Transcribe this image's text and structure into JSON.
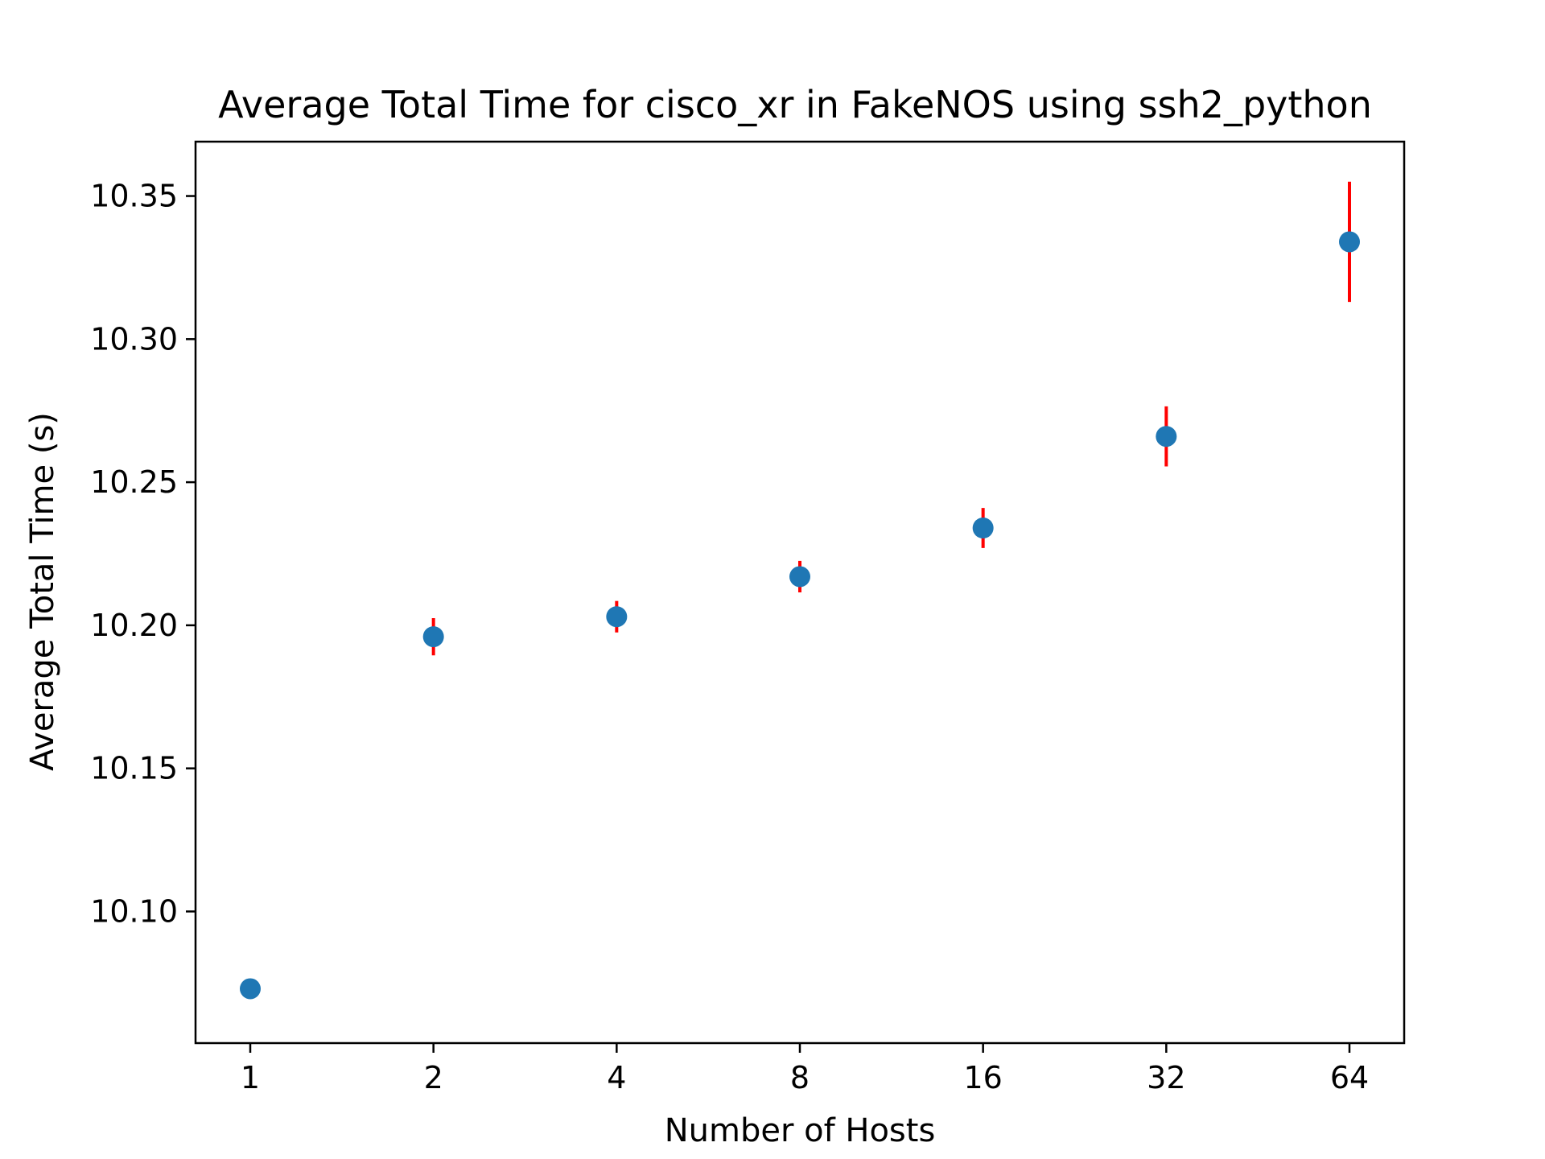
{
  "chart_data": {
    "type": "scatter",
    "title": "Average Total Time for cisco_xr in FakeNOS using ssh2_python",
    "xlabel": "Number of Hosts",
    "ylabel": "Average Total Time (s)",
    "x_categories": [
      "1",
      "2",
      "4",
      "8",
      "16",
      "32",
      "64"
    ],
    "x_scale": "log2",
    "ylim": [
      10.054,
      10.369
    ],
    "yticks": [
      "10.10",
      "10.15",
      "10.20",
      "10.25",
      "10.30",
      "10.35"
    ],
    "ytick_values": [
      10.1,
      10.15,
      10.2,
      10.25,
      10.3,
      10.35
    ],
    "grid": false,
    "legend": "none",
    "series": [
      {
        "x": [
          1,
          2,
          4,
          8,
          16,
          32,
          64
        ],
        "y": [
          10.073,
          10.196,
          10.203,
          10.217,
          10.234,
          10.266,
          10.334
        ],
        "yerr": [
          0.0035,
          0.0065,
          0.0055,
          0.0055,
          0.007,
          0.0105,
          0.021
        ]
      }
    ],
    "colors": {
      "marker": "#1f77b4",
      "errorbar": "#ff0000",
      "axes": "#000000"
    }
  }
}
